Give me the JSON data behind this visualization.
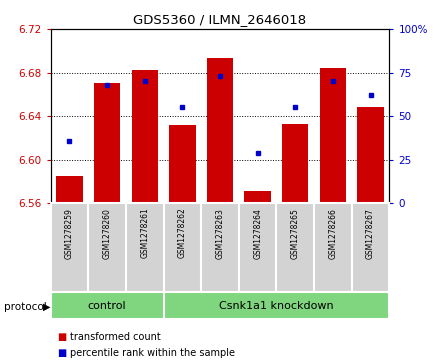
{
  "title": "GDS5360 / ILMN_2646018",
  "samples": [
    "GSM1278259",
    "GSM1278260",
    "GSM1278261",
    "GSM1278262",
    "GSM1278263",
    "GSM1278264",
    "GSM1278265",
    "GSM1278266",
    "GSM1278267"
  ],
  "transformed_count": [
    6.585,
    6.67,
    6.682,
    6.632,
    6.693,
    6.571,
    6.633,
    6.684,
    6.648
  ],
  "percentile_rank": [
    36,
    68,
    70,
    55,
    73,
    29,
    55,
    70,
    62
  ],
  "bar_bottom": 6.56,
  "ylim_left": [
    6.56,
    6.72
  ],
  "ylim_right": [
    0,
    100
  ],
  "yticks_left": [
    6.56,
    6.6,
    6.64,
    6.68,
    6.72
  ],
  "yticks_right": [
    0,
    25,
    50,
    75,
    100
  ],
  "bar_color": "#CC0000",
  "dot_color": "#0000CC",
  "control_color": "#7FD67F",
  "label_bg_color": "#D3D3D3",
  "control_samples_count": 3,
  "knockdown_samples_count": 6,
  "control_label": "control",
  "knockdown_label": "Csnk1a1 knockdown",
  "protocol_label": "protocol",
  "legend_bar": "transformed count",
  "legend_dot": "percentile rank within the sample",
  "left_tick_color": "#CC0000",
  "right_tick_color": "#0000CC"
}
